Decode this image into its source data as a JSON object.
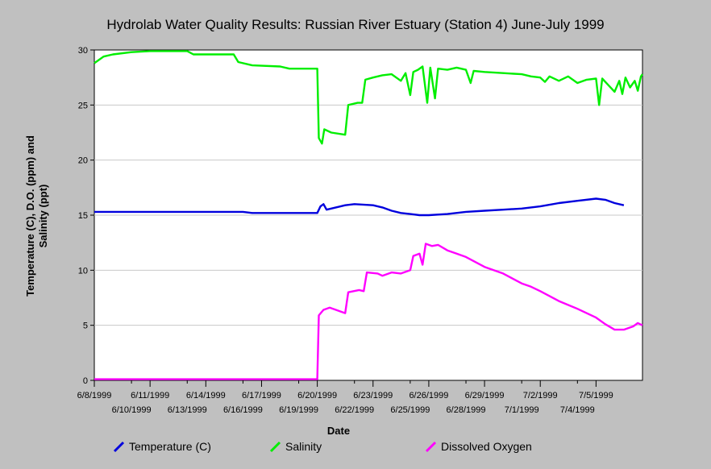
{
  "chart_data": {
    "type": "line",
    "title": "Hydrolab Water Quality Results: Russian River Estuary (Station 4) June-July 1999",
    "xlabel": "Date",
    "ylabel": "Temperature (C), D.O. (ppm) and Salinity (ppt)",
    "ylim": [
      0,
      30
    ],
    "yticks": [
      0,
      5,
      10,
      15,
      20,
      25,
      30
    ],
    "xlim": [
      "6/8/1999",
      "7/7/1999 12:00"
    ],
    "xticks_upper": [
      "6/8/1999",
      "6/11/1999",
      "6/14/1999",
      "6/17/1999",
      "6/20/1999",
      "6/23/1999",
      "6/26/1999",
      "6/29/1999",
      "7/2/1999",
      "7/5/1999"
    ],
    "xticks_lower": [
      "6/10/1999",
      "6/13/1999",
      "6/16/1999",
      "6/19/1999",
      "6/22/1999",
      "6/25/1999",
      "6/28/1999",
      "7/1/1999",
      "7/4/1999"
    ],
    "grid": true,
    "legend": "bottom",
    "series": [
      {
        "name": "Temperature (C)",
        "color": "#0000dd",
        "points": [
          [
            "6/8/1999 00:00",
            15.3
          ],
          [
            "6/11/1999 00:00",
            15.3
          ],
          [
            "6/14/1999 00:00",
            15.3
          ],
          [
            "6/16/1999 00:00",
            15.3
          ],
          [
            "6/16/1999 12:00",
            15.2
          ],
          [
            "6/19/1999 00:00",
            15.2
          ],
          [
            "6/20/1999 00:00",
            15.2
          ],
          [
            "6/20/1999 04:00",
            15.8
          ],
          [
            "6/20/1999 08:00",
            16.0
          ],
          [
            "6/20/1999 12:00",
            15.5
          ],
          [
            "6/21/1999 00:00",
            15.7
          ],
          [
            "6/21/1999 12:00",
            15.9
          ],
          [
            "6/22/1999 00:00",
            16.0
          ],
          [
            "6/23/1999 00:00",
            15.9
          ],
          [
            "6/23/1999 12:00",
            15.7
          ],
          [
            "6/24/1999 00:00",
            15.4
          ],
          [
            "6/24/1999 12:00",
            15.2
          ],
          [
            "6/25/1999 00:00",
            15.1
          ],
          [
            "6/25/1999 12:00",
            15.0
          ],
          [
            "6/26/1999 00:00",
            15.0
          ],
          [
            "6/27/1999 00:00",
            15.1
          ],
          [
            "6/28/1999 00:00",
            15.3
          ],
          [
            "6/29/1999 00:00",
            15.4
          ],
          [
            "6/30/1999 00:00",
            15.5
          ],
          [
            "7/1/1999 00:00",
            15.6
          ],
          [
            "7/2/1999 00:00",
            15.8
          ],
          [
            "7/3/1999 00:00",
            16.1
          ],
          [
            "7/4/1999 00:00",
            16.3
          ],
          [
            "7/5/1999 00:00",
            16.5
          ],
          [
            "7/5/1999 12:00",
            16.4
          ],
          [
            "7/6/1999 00:00",
            16.1
          ],
          [
            "7/6/1999 12:00",
            15.9
          ]
        ]
      },
      {
        "name": "Salinity",
        "color": "#00ee00",
        "points": [
          [
            "6/8/1999 00:00",
            28.8
          ],
          [
            "6/8/1999 12:00",
            29.4
          ],
          [
            "6/9/1999 00:00",
            29.6
          ],
          [
            "6/10/1999 00:00",
            29.8
          ],
          [
            "6/11/1999 00:00",
            29.9
          ],
          [
            "6/13/1999 00:00",
            29.9
          ],
          [
            "6/13/1999 08:00",
            29.6
          ],
          [
            "6/15/1999 12:00",
            29.6
          ],
          [
            "6/15/1999 18:00",
            28.9
          ],
          [
            "6/16/1999 12:00",
            28.6
          ],
          [
            "6/18/1999 00:00",
            28.5
          ],
          [
            "6/18/1999 12:00",
            28.3
          ],
          [
            "6/20/1999 00:00",
            28.3
          ],
          [
            "6/20/1999 02:00",
            22.0
          ],
          [
            "6/20/1999 06:00",
            21.5
          ],
          [
            "6/20/1999 09:00",
            22.8
          ],
          [
            "6/20/1999 18:00",
            22.5
          ],
          [
            "6/21/1999 12:00",
            22.3
          ],
          [
            "6/21/1999 16:00",
            25.0
          ],
          [
            "6/22/1999 04:00",
            25.2
          ],
          [
            "6/22/1999 10:00",
            25.2
          ],
          [
            "6/22/1999 14:00",
            27.3
          ],
          [
            "6/23/1999 00:00",
            27.5
          ],
          [
            "6/23/1999 12:00",
            27.7
          ],
          [
            "6/24/1999 00:00",
            27.8
          ],
          [
            "6/24/1999 12:00",
            27.2
          ],
          [
            "6/24/1999 18:00",
            27.9
          ],
          [
            "6/25/1999 00:00",
            25.9
          ],
          [
            "6/25/1999 04:00",
            28.0
          ],
          [
            "6/25/1999 10:00",
            28.2
          ],
          [
            "6/25/1999 16:00",
            28.5
          ],
          [
            "6/25/1999 22:00",
            25.2
          ],
          [
            "6/26/1999 02:00",
            28.4
          ],
          [
            "6/26/1999 08:00",
            25.6
          ],
          [
            "6/26/1999 12:00",
            28.3
          ],
          [
            "6/27/1999 00:00",
            28.2
          ],
          [
            "6/27/1999 12:00",
            28.4
          ],
          [
            "6/28/1999 00:00",
            28.2
          ],
          [
            "6/28/1999 06:00",
            27.0
          ],
          [
            "6/28/1999 10:00",
            28.1
          ],
          [
            "6/29/1999 00:00",
            28.0
          ],
          [
            "6/30/1999 00:00",
            27.9
          ],
          [
            "7/1/1999 00:00",
            27.8
          ],
          [
            "7/1/1999 12:00",
            27.6
          ],
          [
            "7/2/1999 00:00",
            27.5
          ],
          [
            "7/2/1999 06:00",
            27.1
          ],
          [
            "7/2/1999 12:00",
            27.6
          ],
          [
            "7/3/1999 00:00",
            27.2
          ],
          [
            "7/3/1999 12:00",
            27.6
          ],
          [
            "7/4/1999 00:00",
            27.0
          ],
          [
            "7/4/1999 12:00",
            27.3
          ],
          [
            "7/5/1999 00:00",
            27.4
          ],
          [
            "7/5/1999 04:00",
            25.0
          ],
          [
            "7/5/1999 08:00",
            27.4
          ],
          [
            "7/5/1999 16:00",
            26.8
          ],
          [
            "7/6/1999 00:00",
            26.2
          ],
          [
            "7/6/1999 06:00",
            27.2
          ],
          [
            "7/6/1999 10:00",
            26.0
          ],
          [
            "7/6/1999 14:00",
            27.5
          ],
          [
            "7/6/1999 20:00",
            26.6
          ],
          [
            "7/7/1999 02:00",
            27.2
          ],
          [
            "7/7/1999 06:00",
            26.3
          ],
          [
            "7/7/1999 10:00",
            27.6
          ],
          [
            "7/7/1999 12:00",
            27.8
          ]
        ]
      },
      {
        "name": "Dissolved Oxygen",
        "color": "#ff00ff",
        "points": [
          [
            "6/8/1999 00:00",
            0.1
          ],
          [
            "6/14/1999 00:00",
            0.1
          ],
          [
            "6/20/1999 00:00",
            0.1
          ],
          [
            "6/20/1999 02:00",
            5.9
          ],
          [
            "6/20/1999 08:00",
            6.4
          ],
          [
            "6/20/1999 16:00",
            6.6
          ],
          [
            "6/21/1999 00:00",
            6.4
          ],
          [
            "6/21/1999 12:00",
            6.1
          ],
          [
            "6/21/1999 16:00",
            8.0
          ],
          [
            "6/22/1999 06:00",
            8.2
          ],
          [
            "6/22/1999 12:00",
            8.1
          ],
          [
            "6/22/1999 16:00",
            9.8
          ],
          [
            "6/23/1999 06:00",
            9.7
          ],
          [
            "6/23/1999 12:00",
            9.5
          ],
          [
            "6/24/1999 00:00",
            9.8
          ],
          [
            "6/24/1999 12:00",
            9.7
          ],
          [
            "6/25/1999 00:00",
            10.0
          ],
          [
            "6/25/1999 04:00",
            11.3
          ],
          [
            "6/25/1999 12:00",
            11.5
          ],
          [
            "6/25/1999 16:00",
            10.5
          ],
          [
            "6/25/1999 20:00",
            12.4
          ],
          [
            "6/26/1999 04:00",
            12.2
          ],
          [
            "6/26/1999 12:00",
            12.3
          ],
          [
            "6/27/1999 00:00",
            11.8
          ],
          [
            "6/27/1999 12:00",
            11.5
          ],
          [
            "6/28/1999 00:00",
            11.2
          ],
          [
            "6/29/1999 00:00",
            10.3
          ],
          [
            "6/30/1999 00:00",
            9.7
          ],
          [
            "7/1/1999 00:00",
            8.8
          ],
          [
            "7/1/1999 12:00",
            8.5
          ],
          [
            "7/2/1999 00:00",
            8.1
          ],
          [
            "7/3/1999 00:00",
            7.2
          ],
          [
            "7/4/1999 00:00",
            6.5
          ],
          [
            "7/5/1999 00:00",
            5.7
          ],
          [
            "7/5/1999 12:00",
            5.1
          ],
          [
            "7/6/1999 00:00",
            4.6
          ],
          [
            "7/6/1999 12:00",
            4.6
          ],
          [
            "7/7/1999 00:00",
            4.9
          ],
          [
            "7/7/1999 06:00",
            5.2
          ],
          [
            "7/7/1999 12:00",
            5.0
          ]
        ]
      }
    ]
  }
}
